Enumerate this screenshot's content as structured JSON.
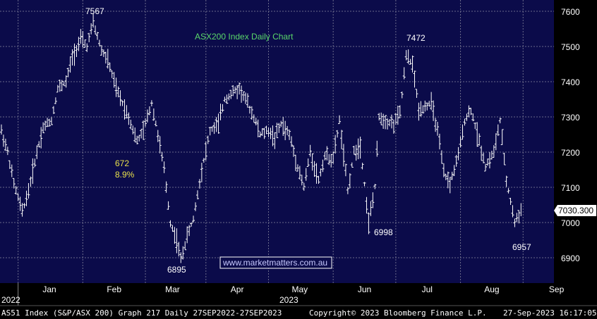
{
  "chart_data": {
    "type": "ohlc",
    "title": "ASX200 Index Daily Chart",
    "watermark": "www.marketmatters.com.au",
    "ylim": [
      6820,
      7640
    ],
    "y_ticks": [
      "7600",
      "7500",
      "7400",
      "7300",
      "7200",
      "7100",
      "7000",
      "6900"
    ],
    "y_tick_values": [
      7600,
      7500,
      7400,
      7300,
      7200,
      7100,
      7000,
      6900
    ],
    "x_labels": [
      "Jan",
      "Feb",
      "Mar",
      "Apr",
      "May",
      "Jun",
      "Jul",
      "Aug",
      "Sep"
    ],
    "x_label_days": [
      23,
      54,
      82,
      113,
      143,
      174,
      204,
      235,
      266
    ],
    "year_labels": [
      "2022",
      "2023"
    ],
    "last_price": "7030.300",
    "annotations": {
      "high1": "7567",
      "high2": "7472",
      "low1": "6895",
      "low2": "6998",
      "low3": "6957",
      "move_points": "672",
      "move_pct": "8.9%"
    },
    "series": [
      {
        "values": [
          [
            0,
            7260
          ],
          [
            3,
            7200
          ],
          [
            6,
            7110
          ],
          [
            10,
            7030
          ],
          [
            13,
            7090
          ],
          [
            17,
            7200
          ],
          [
            20,
            7270
          ],
          [
            24,
            7290
          ],
          [
            27,
            7380
          ],
          [
            31,
            7400
          ],
          [
            34,
            7470
          ],
          [
            38,
            7520
          ],
          [
            41,
            7500
          ],
          [
            44,
            7567
          ],
          [
            48,
            7490
          ],
          [
            51,
            7460
          ],
          [
            55,
            7380
          ],
          [
            58,
            7340
          ],
          [
            61,
            7300
          ],
          [
            65,
            7230
          ],
          [
            68,
            7260
          ],
          [
            72,
            7340
          ],
          [
            75,
            7250
          ],
          [
            78,
            7150
          ],
          [
            81,
            7000
          ],
          [
            84,
            6950
          ],
          [
            86,
            6895
          ],
          [
            89,
            6960
          ],
          [
            92,
            7010
          ],
          [
            96,
            7150
          ],
          [
            100,
            7260
          ],
          [
            104,
            7280
          ],
          [
            107,
            7350
          ],
          [
            111,
            7370
          ],
          [
            114,
            7380
          ],
          [
            117,
            7350
          ],
          [
            121,
            7300
          ],
          [
            124,
            7250
          ],
          [
            128,
            7260
          ],
          [
            131,
            7240
          ],
          [
            134,
            7280
          ],
          [
            138,
            7250
          ],
          [
            141,
            7180
          ],
          [
            145,
            7100
          ],
          [
            148,
            7200
          ],
          [
            152,
            7120
          ],
          [
            155,
            7190
          ],
          [
            159,
            7180
          ],
          [
            162,
            7290
          ],
          [
            166,
            7090
          ],
          [
            169,
            7200
          ],
          [
            172,
            7220
          ],
          [
            176,
            7000
          ],
          [
            179,
            7100
          ],
          [
            181,
            7300
          ],
          [
            184,
            7290
          ],
          [
            188,
            7280
          ],
          [
            191,
            7310
          ],
          [
            194,
            7472
          ],
          [
            197,
            7450
          ],
          [
            200,
            7320
          ],
          [
            203,
            7330
          ],
          [
            206,
            7340
          ],
          [
            209,
            7260
          ],
          [
            212,
            7140
          ],
          [
            215,
            7110
          ],
          [
            219,
            7190
          ],
          [
            222,
            7290
          ],
          [
            225,
            7320
          ],
          [
            229,
            7230
          ],
          [
            232,
            7160
          ],
          [
            236,
            7200
          ],
          [
            239,
            7290
          ],
          [
            242,
            7120
          ],
          [
            246,
            7000
          ],
          [
            249,
            7030
          ]
        ]
      }
    ]
  },
  "footer": {
    "left": "AS51 Index (S&P/ASX 200) Graph 217  Daily 27SEP2022-27SEP2023",
    "center": "Copyright© 2023 Bloomberg Finance L.P.",
    "right": "27-Sep-2023 16:17:05"
  },
  "colors": {
    "background": "#0b0b4a",
    "grid": "#6a6a8a",
    "price": "#ffffff",
    "title": "#5ad86a",
    "move_label": "#e8e04a",
    "watermark_text": "#c7c9ff",
    "watermark_border": "#ffffff"
  }
}
